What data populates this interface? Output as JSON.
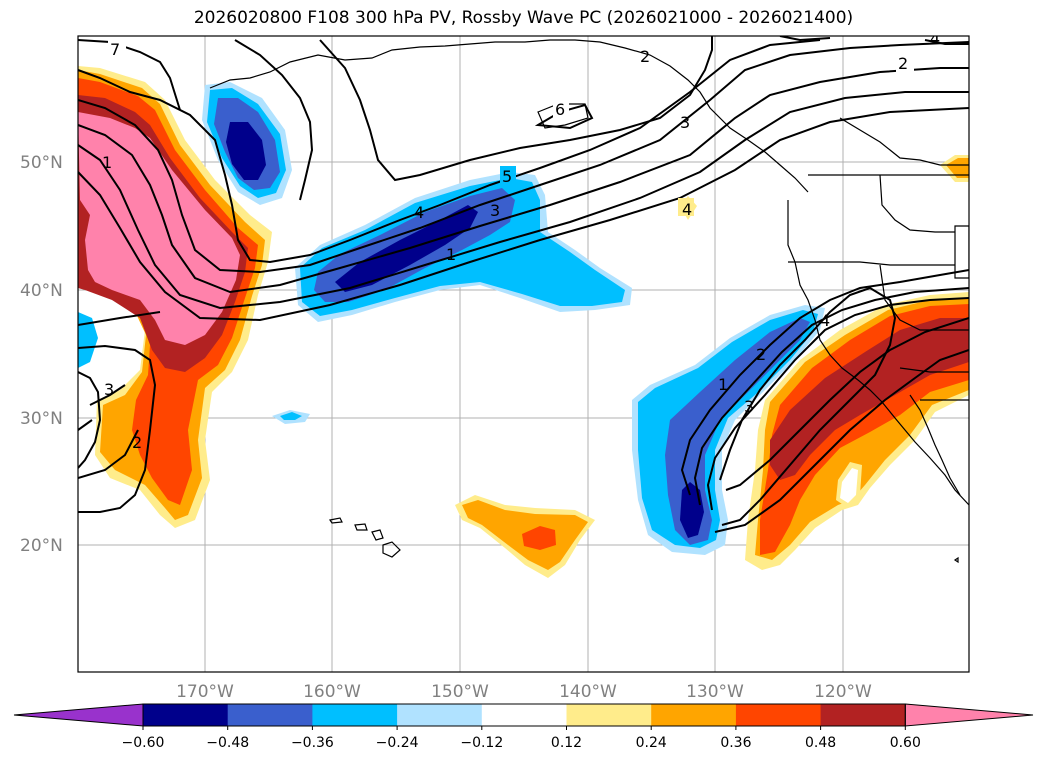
{
  "title": "2026020800 F108 300 hPa PV, Rossby Wave PC (2026021000 - 2026021400)",
  "lat_labels": [
    "50°N",
    "40°N",
    "30°N",
    "20°N"
  ],
  "lon_labels": [
    "170°W",
    "160°W",
    "150°W",
    "140°W",
    "130°W",
    "120°W"
  ],
  "colorbar": {
    "ticks": [
      "−0.60",
      "−0.48",
      "−0.36",
      "−0.24",
      "−0.12",
      "0.12",
      "0.24",
      "0.36",
      "0.48",
      "0.60"
    ],
    "colors": [
      "#9932cc",
      "#00008b",
      "#3a5fcd",
      "#00bfff",
      "#b0e2ff",
      "#ffffff",
      "#ffec8b",
      "#ffa500",
      "#ff4500",
      "#b22222",
      "#ff82ab"
    ]
  },
  "contour_labels": [
    "7",
    "6",
    "5",
    "4",
    "3",
    "1",
    "1",
    "2",
    "3",
    "4",
    "2",
    "3",
    "1",
    "2",
    "3",
    "4",
    "2",
    "4"
  ],
  "colors": {
    "pink": "#ff82ab",
    "brown": "#b22222",
    "red": "#ff4500",
    "orange": "#ffa500",
    "yellow": "#ffec8b",
    "lightblue": "#b0e2ff",
    "cyan": "#00bfff",
    "blue": "#3a5fcd",
    "navy": "#00008b",
    "purple": "#9932cc"
  }
}
